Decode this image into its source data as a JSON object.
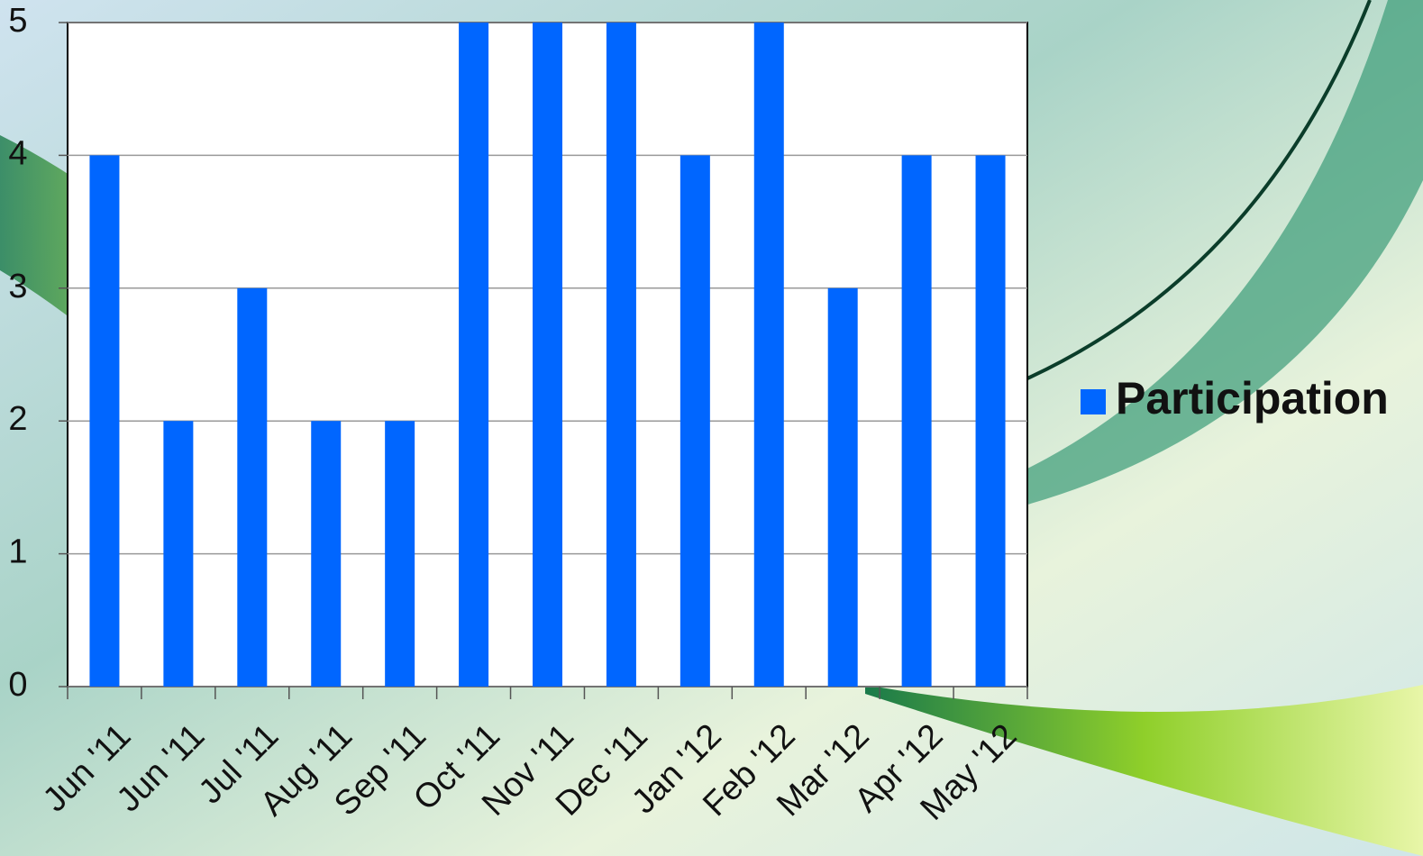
{
  "chart_data": {
    "type": "bar",
    "categories": [
      "Jun '11",
      "Jun '11",
      "Jul '11",
      "Aug '11",
      "Sep '11",
      "Oct '11",
      "Nov '11",
      "Dec '11",
      "Jan '12",
      "Feb '12",
      "Mar '12",
      "Apr '12",
      "May '12"
    ],
    "series": [
      {
        "name": "Participation",
        "color": "#0066ff",
        "values": [
          4,
          2,
          3,
          2,
          2,
          5,
          5,
          5,
          4,
          5,
          3,
          4,
          4
        ]
      }
    ],
    "ylim": [
      0,
      5
    ],
    "yticks": [
      0,
      1,
      2,
      3,
      4,
      5
    ],
    "grid": true,
    "legend": "right"
  }
}
